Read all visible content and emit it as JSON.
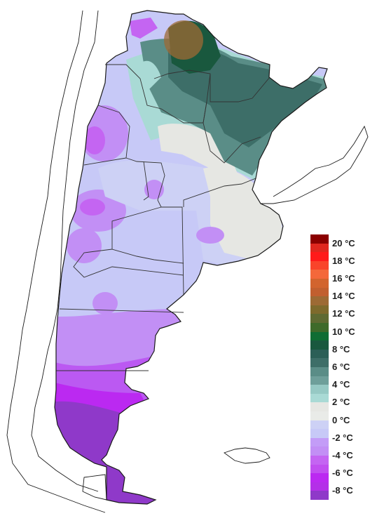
{
  "colors": {
    "background": "#ffffff",
    "outline": "#1a1a1a",
    "province_border": "#333333"
  },
  "legend": {
    "items": [
      {
        "color": "#8b0000",
        "label": "20 °C"
      },
      {
        "color": "#e0271f",
        "label": ""
      },
      {
        "color": "#ff1a1a",
        "label": "18 °C"
      },
      {
        "color": "#f9442a",
        "label": ""
      },
      {
        "color": "#f4683a",
        "label": "16 °C"
      },
      {
        "color": "#d2642e",
        "label": ""
      },
      {
        "color": "#c15f2f",
        "label": "14 °C"
      },
      {
        "color": "#9d6a34",
        "label": ""
      },
      {
        "color": "#7e6a2c",
        "label": "12 °C"
      },
      {
        "color": "#5f6a32",
        "label": ""
      },
      {
        "color": "#3e6a2a",
        "label": "10 °C"
      },
      {
        "color": "#0f6d33",
        "label": ""
      },
      {
        "color": "#19583e",
        "label": "8 °C"
      },
      {
        "color": "#2b5f57",
        "label": ""
      },
      {
        "color": "#3d6e68",
        "label": "6 °C"
      },
      {
        "color": "#5a8d87",
        "label": ""
      },
      {
        "color": "#6e9f9a",
        "label": "4 °C"
      },
      {
        "color": "#96c9c4",
        "label": ""
      },
      {
        "color": "#a9dad5",
        "label": "2 °C"
      },
      {
        "color": "#e6e7e3",
        "label": ""
      },
      {
        "color": "#e9ebe8",
        "label": "0 °C"
      },
      {
        "color": "#cdd1f5",
        "label": ""
      },
      {
        "color": "#c7c9f7",
        "label": "-2 °C"
      },
      {
        "color": "#c39cf7",
        "label": ""
      },
      {
        "color": "#c28ff5",
        "label": "-4 °C"
      },
      {
        "color": "#c465f2",
        "label": ""
      },
      {
        "color": "#c14ff0",
        "label": "-6 °C"
      },
      {
        "color": "#bb29f1",
        "label": ""
      },
      {
        "color": "#b42fe8",
        "label": "-8 °C"
      },
      {
        "color": "#8f39c9",
        "label": ""
      }
    ]
  }
}
